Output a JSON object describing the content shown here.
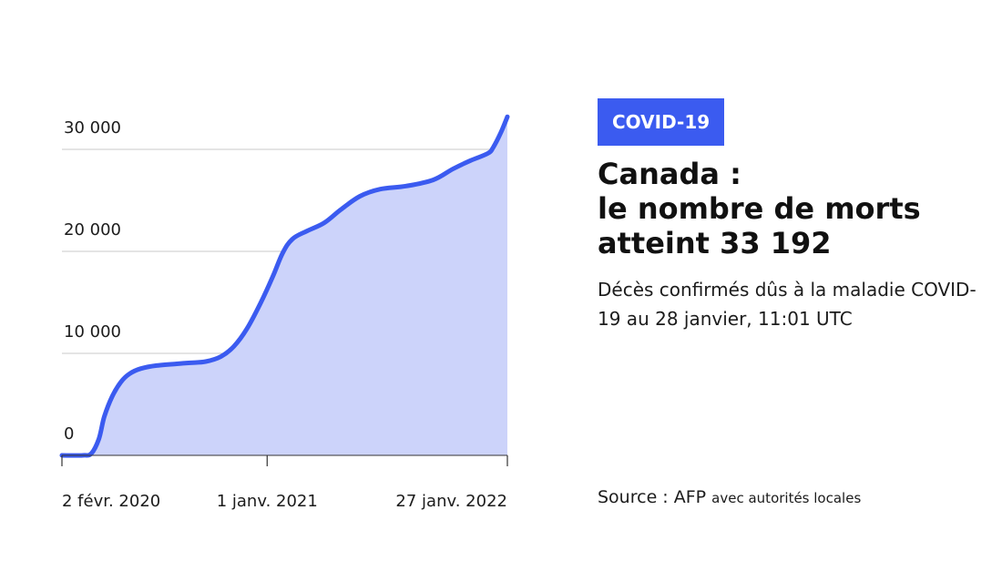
{
  "tag": {
    "label": "COVID-19",
    "color": "#3b5bf0"
  },
  "header": {
    "title_lines": [
      "Canada :",
      "le nombre de morts",
      "atteint 33 192"
    ],
    "subtitle": "Décès confirmés dûs à la maladie COVID-19 au 28 janvier, 11:01 UTC"
  },
  "source": {
    "label": "Source : AFP",
    "detail": "avec autorités locales"
  },
  "colors": {
    "line": "#3b5bf0",
    "area": "#ccd3fa",
    "grid": "#c8c8c8",
    "axis": "#333333"
  },
  "chart_data": {
    "type": "area",
    "title": "Canada : le nombre de morts atteint 33 192",
    "xlabel": "",
    "ylabel": "",
    "ylim": [
      0,
      35000
    ],
    "xlim": [
      "2020-02-02",
      "2022-01-27"
    ],
    "grid": true,
    "y_ticks": [
      {
        "value": 0,
        "label": "0"
      },
      {
        "value": 10000,
        "label": "10 000"
      },
      {
        "value": 20000,
        "label": "20 000"
      },
      {
        "value": 30000,
        "label": "30 000"
      }
    ],
    "x_ticks": [
      {
        "date": "2020-02-02",
        "label": "2 févr. 2020"
      },
      {
        "date": "2021-01-01",
        "label": "1 janv. 2021"
      },
      {
        "date": "2022-01-27",
        "label": "27 janv. 2022"
      }
    ],
    "series": [
      {
        "points": [
          [
            "2020-02-02",
            0
          ],
          [
            "2020-03-07",
            0
          ],
          [
            "2020-03-21",
            200
          ],
          [
            "2020-04-02",
            1600
          ],
          [
            "2020-04-11",
            3800
          ],
          [
            "2020-04-24",
            5800
          ],
          [
            "2020-05-08",
            7200
          ],
          [
            "2020-05-22",
            8000
          ],
          [
            "2020-06-09",
            8500
          ],
          [
            "2020-07-05",
            8800
          ],
          [
            "2020-08-23",
            9050
          ],
          [
            "2020-09-23",
            9200
          ],
          [
            "2020-10-18",
            9700
          ],
          [
            "2020-11-08",
            10700
          ],
          [
            "2020-11-29",
            12400
          ],
          [
            "2020-12-21",
            14900
          ],
          [
            "2021-01-10",
            17500
          ],
          [
            "2021-01-26",
            19800
          ],
          [
            "2021-02-11",
            21200
          ],
          [
            "2021-03-07",
            22000
          ],
          [
            "2021-04-04",
            22800
          ],
          [
            "2021-05-01",
            24100
          ],
          [
            "2021-06-01",
            25400
          ],
          [
            "2021-07-04",
            26100
          ],
          [
            "2021-08-15",
            26400
          ],
          [
            "2021-09-28",
            27000
          ],
          [
            "2021-10-31",
            28100
          ],
          [
            "2021-11-28",
            28900
          ],
          [
            "2021-12-26",
            29600
          ],
          [
            "2022-01-04",
            30200
          ],
          [
            "2022-01-16",
            31600
          ],
          [
            "2022-01-27",
            33192
          ]
        ]
      }
    ]
  }
}
